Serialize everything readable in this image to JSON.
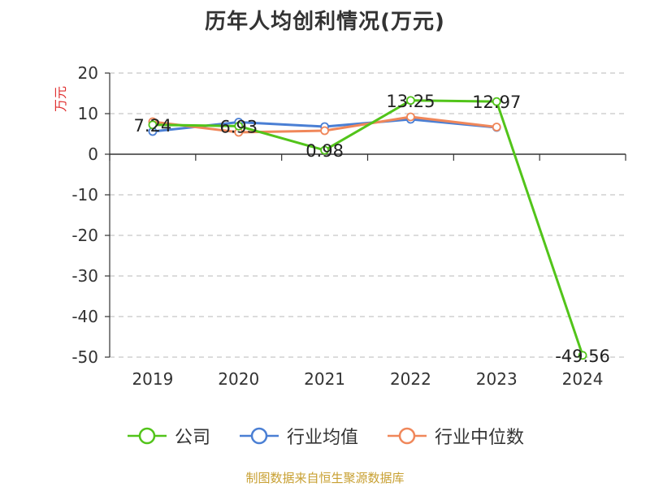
{
  "chart_data": {
    "type": "line",
    "title": "历年人均创利情况(万元)",
    "ylabel": "万元",
    "xlabel": "",
    "categories": [
      "2019",
      "2020",
      "2021",
      "2022",
      "2023",
      "2024"
    ],
    "ylim": [
      -50,
      20
    ],
    "yticks": [
      "20",
      "10",
      "0",
      "-10",
      "-20",
      "-30",
      "-40",
      "-50"
    ],
    "grid": true,
    "legend_position": "bottom",
    "series": [
      {
        "name": "公司",
        "color": "#52c41a",
        "values": [
          7.24,
          6.93,
          0.98,
          13.25,
          12.97,
          -49.56
        ],
        "labels": [
          "7.24",
          "6.93",
          "0.98",
          "13.25",
          "12.97",
          "-49.56"
        ]
      },
      {
        "name": "行业均值",
        "color": "#4a7fd4",
        "values": [
          5.6,
          7.9,
          6.8,
          8.6,
          6.6,
          null
        ]
      },
      {
        "name": "行业中位数",
        "color": "#f0875a",
        "values": [
          8.0,
          5.4,
          5.8,
          9.2,
          6.7,
          null
        ]
      }
    ]
  },
  "source": "制图数据来自恒生聚源数据库"
}
